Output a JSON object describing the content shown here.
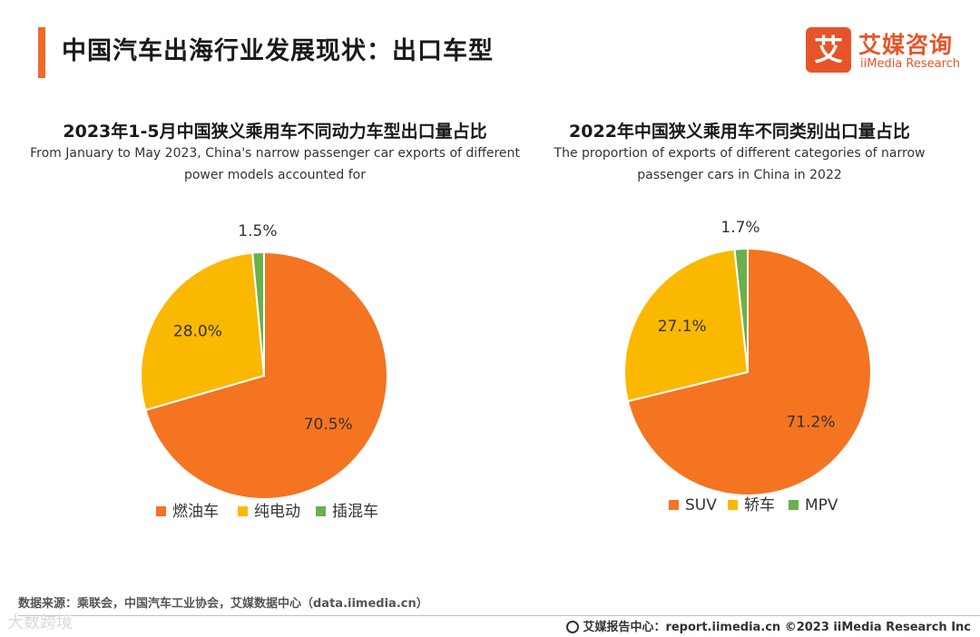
{
  "header": {
    "title": "中国汽车出海行业发展现状：出口车型"
  },
  "logo": {
    "mark": "艾",
    "name_cn": "艾媒咨询",
    "name_en": "iiMedia Research"
  },
  "chart_data": [
    {
      "type": "pie",
      "title": "2023年1-5月中国狭义乘用车不同动力车型出口量占比",
      "subtitle_lines": [
        "From January to May 2023, China's narrow passenger car exports of different",
        "power models accounted for"
      ],
      "categories": [
        "燃油车",
        "纯电动",
        "插混车"
      ],
      "values": [
        70.5,
        28.0,
        1.5
      ],
      "labels": [
        "70.5%",
        "28.0%",
        "1.5%"
      ],
      "colors": [
        "#f47421",
        "#fbb800",
        "#6ab04c"
      ],
      "legend": "bottom"
    },
    {
      "type": "pie",
      "title": "2022年中国狭义乘用车不同类别出口量占比",
      "subtitle_lines": [
        "The proportion of exports of different categories of narrow",
        "passenger cars in China in 2022"
      ],
      "categories": [
        "SUV",
        "轿车",
        "MPV"
      ],
      "values": [
        71.2,
        27.1,
        1.7
      ],
      "labels": [
        "71.2%",
        "27.1%",
        "1.7%"
      ],
      "colors": [
        "#f47421",
        "#fbb800",
        "#6ab04c"
      ],
      "legend": "bottom"
    }
  ],
  "source": "数据来源：乘联会，中国汽车工业协会，艾媒数据中心（data.iimedia.cn）",
  "footer": "艾媒报告中心：report.iimedia.cn  ©2023  iiMedia Research  Inc",
  "watermark": "大数跨境"
}
